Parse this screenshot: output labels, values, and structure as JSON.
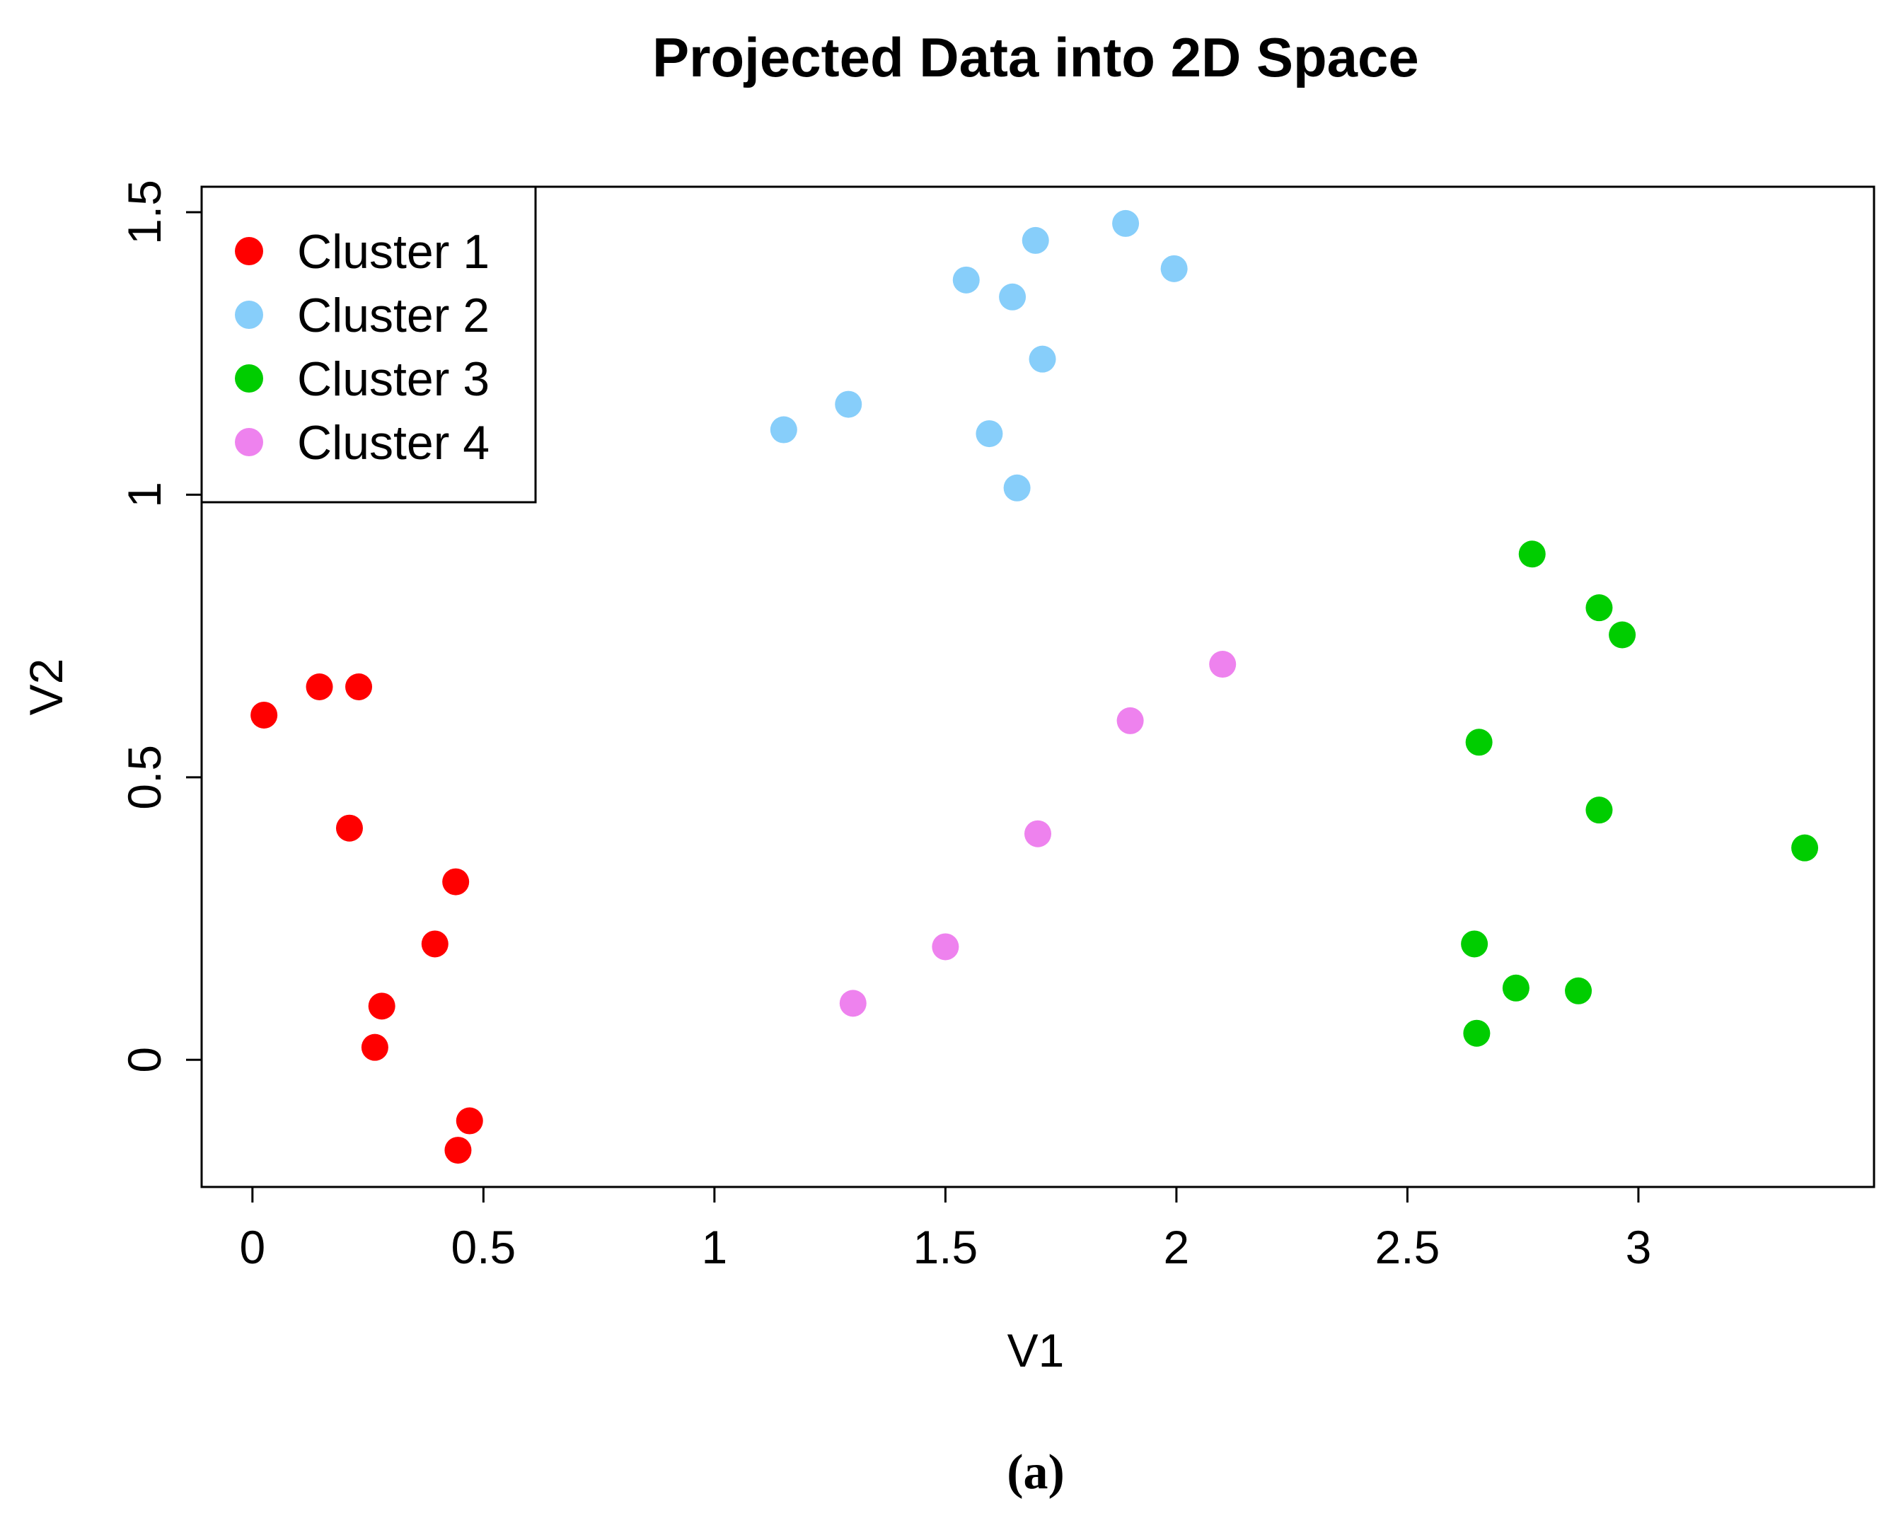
{
  "chart_data": {
    "type": "scatter",
    "title": "Projected Data into 2D Space",
    "xlabel": "V1",
    "ylabel": "V2",
    "caption": "(a)",
    "xlim": [
      -0.11,
      3.51
    ],
    "ylim": [
      -0.225,
      1.545
    ],
    "x_ticks": [
      0,
      0.5,
      1,
      1.5,
      2,
      2.5,
      3
    ],
    "x_tick_labels": [
      "0",
      "0.5",
      "1",
      "1.5",
      "2",
      "2.5",
      "3"
    ],
    "y_ticks": [
      0,
      0.5,
      1,
      1.5
    ],
    "y_tick_labels": [
      "0",
      "0.5",
      "1",
      "1.5"
    ],
    "legend_position": "top-left",
    "grid": false,
    "series": [
      {
        "name": "Cluster 1",
        "color": "#ff0000",
        "points": [
          [
            0.025,
            0.61
          ],
          [
            0.145,
            0.66
          ],
          [
            0.23,
            0.66
          ],
          [
            0.21,
            0.41
          ],
          [
            0.44,
            0.315
          ],
          [
            0.395,
            0.205
          ],
          [
            0.28,
            0.095
          ],
          [
            0.265,
            0.022
          ],
          [
            0.47,
            -0.108
          ],
          [
            0.445,
            -0.16
          ]
        ]
      },
      {
        "name": "Cluster 2",
        "color": "#87cefa",
        "points": [
          [
            1.15,
            1.115
          ],
          [
            1.29,
            1.16
          ],
          [
            1.545,
            1.38
          ],
          [
            1.645,
            1.35
          ],
          [
            1.695,
            1.45
          ],
          [
            1.89,
            1.48
          ],
          [
            1.995,
            1.4
          ],
          [
            1.71,
            1.24
          ],
          [
            1.595,
            1.108
          ],
          [
            1.655,
            1.012
          ]
        ]
      },
      {
        "name": "Cluster 3",
        "color": "#00cd00",
        "points": [
          [
            2.77,
            0.895
          ],
          [
            2.915,
            0.8
          ],
          [
            2.965,
            0.752
          ],
          [
            2.655,
            0.562
          ],
          [
            2.915,
            0.442
          ],
          [
            3.36,
            0.375
          ],
          [
            2.645,
            0.205
          ],
          [
            2.735,
            0.127
          ],
          [
            2.87,
            0.122
          ],
          [
            2.65,
            0.047
          ]
        ]
      },
      {
        "name": "Cluster 4",
        "color": "#ee82ee",
        "points": [
          [
            1.3,
            0.1
          ],
          [
            1.5,
            0.2
          ],
          [
            1.7,
            0.4
          ],
          [
            1.9,
            0.6
          ],
          [
            2.1,
            0.7
          ]
        ]
      }
    ]
  }
}
